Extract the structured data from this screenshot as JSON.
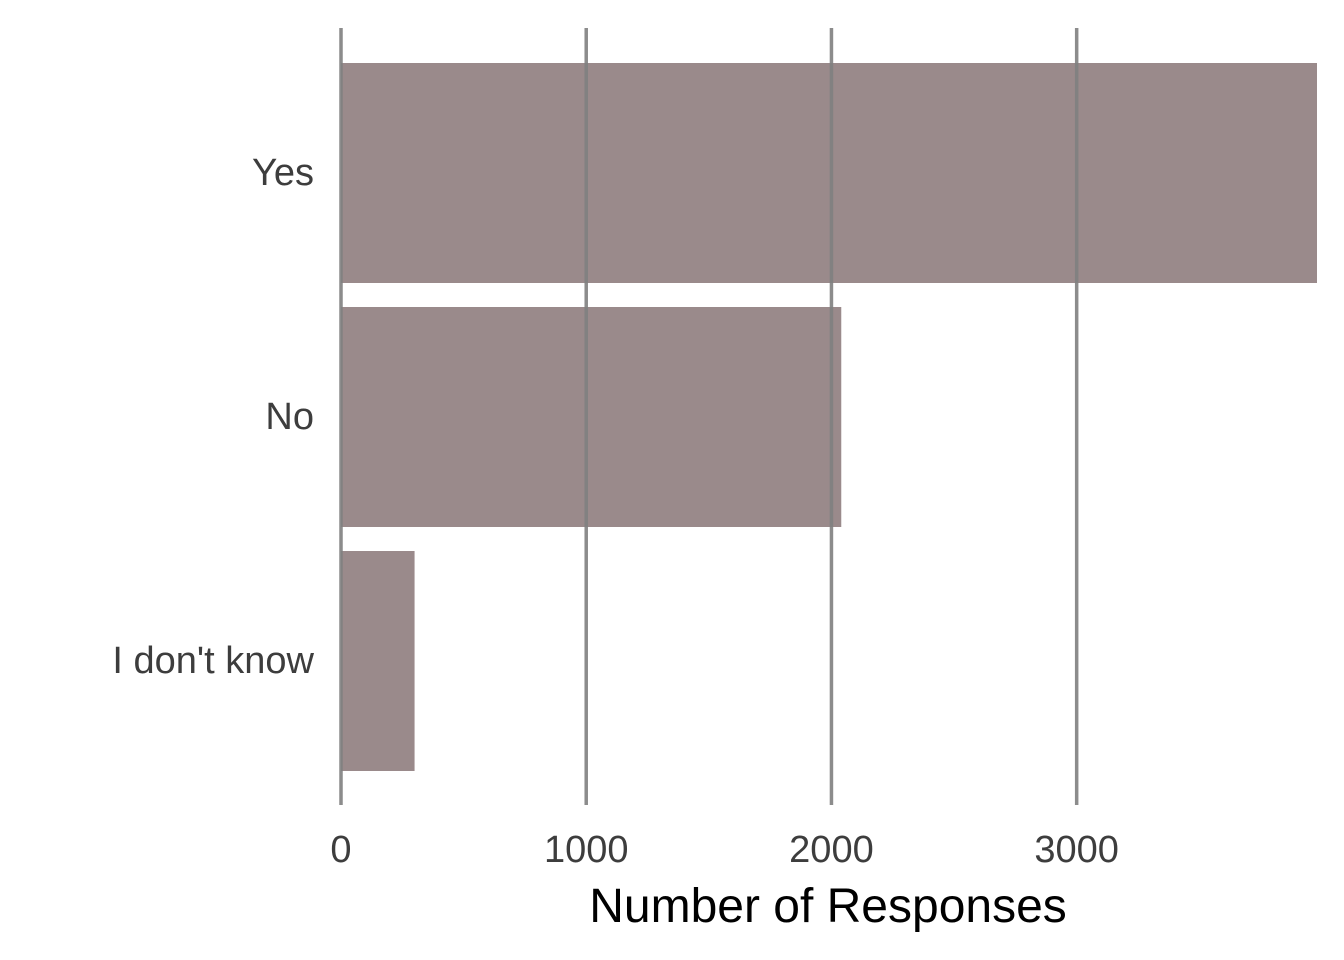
{
  "chart_data": {
    "type": "bar",
    "orientation": "horizontal",
    "categories": [
      "Yes",
      "No",
      "I don't know"
    ],
    "values": [
      3980,
      2040,
      300
    ],
    "title": "",
    "xlabel": "Number of Responses",
    "ylabel": "",
    "xlim": [
      0,
      3980
    ],
    "xticks": [
      0,
      1000,
      2000,
      3000
    ],
    "xtick_labels": [
      "0",
      "1000",
      "2000",
      "3000"
    ],
    "grid": "vertical-major",
    "legend": "none",
    "colors": {
      "bar": "#9a8a8b",
      "grid": "#7f7f7f",
      "tick_text": "#3d3d3d",
      "axis_title": "#000000"
    }
  }
}
